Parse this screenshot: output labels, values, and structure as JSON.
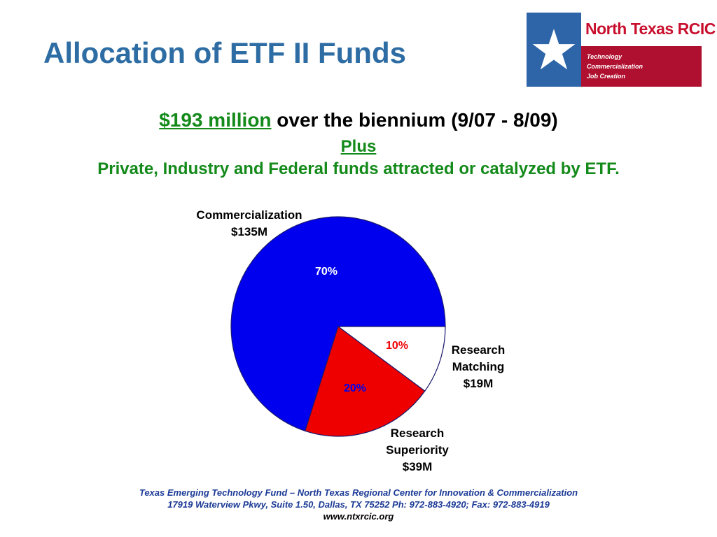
{
  "title": "Allocation of ETF II Funds",
  "logo": {
    "name": "North Texas RCIC",
    "taglines": [
      "Technology",
      "Commercialization",
      "Job Creation"
    ]
  },
  "subtitle": {
    "amount": "$193 million",
    "rest": " over the biennium (9/07 - 8/09)",
    "plus": "Plus",
    "line3": "Private, Industry and Federal funds attracted or catalyzed by ETF."
  },
  "chart_data": {
    "type": "pie",
    "slices": [
      {
        "label": "Commercialization",
        "amount": "$135M",
        "percent_label": "70%",
        "value": 70,
        "color": "#0000ee",
        "pct_color": "#ffffff"
      },
      {
        "label": "Research Matching",
        "amount": "$19M",
        "percent_label": "10%",
        "value": 10,
        "color": "#ffffff",
        "pct_color": "#ee0000"
      },
      {
        "label": "Research Superiority",
        "amount": "$39M",
        "percent_label": "20%",
        "value": 20,
        "color": "#ee0000",
        "pct_color": "#0000ee"
      }
    ]
  },
  "labels": {
    "commercialization": [
      "Commercialization",
      "$135M"
    ],
    "matching": [
      "Research",
      "Matching",
      "$19M"
    ],
    "superiority": [
      "Research",
      "Superiority",
      "$39M"
    ]
  },
  "footer": {
    "line1": "Texas Emerging Technology Fund – North Texas Regional Center for Innovation & Commercialization",
    "line2": "17919 Waterview Pkwy, Suite 1.50, Dallas, TX  75252  Ph: 972-883-4920; Fax: 972-883-4919",
    "line3": "www.ntxrcic.org"
  }
}
